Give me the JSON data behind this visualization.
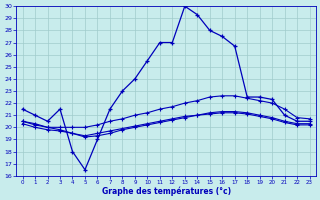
{
  "xlabel": "Graphe des températures (°c)",
  "xlim": [
    -0.5,
    23.5
  ],
  "ylim": [
    16,
    30
  ],
  "xticks": [
    0,
    1,
    2,
    3,
    4,
    5,
    6,
    7,
    8,
    9,
    10,
    11,
    12,
    13,
    14,
    15,
    16,
    17,
    18,
    19,
    20,
    21,
    22,
    23
  ],
  "yticks": [
    16,
    17,
    18,
    19,
    20,
    21,
    22,
    23,
    24,
    25,
    26,
    27,
    28,
    29,
    30
  ],
  "background_color": "#c8ecec",
  "grid_color": "#a0cccc",
  "line_color": "#0000bb",
  "series": {
    "max_temp": {
      "x": [
        0,
        1,
        2,
        3,
        4,
        5,
        6,
        7,
        8,
        9,
        10,
        11,
        12,
        13,
        14,
        15,
        16,
        17,
        18,
        19,
        20,
        21,
        22,
        23
      ],
      "y": [
        21.5,
        21.0,
        20.5,
        21.5,
        18.0,
        16.5,
        19.0,
        21.5,
        23.0,
        24.0,
        25.5,
        27.0,
        27.0,
        30.0,
        29.3,
        28.0,
        27.5,
        26.7,
        22.5,
        22.5,
        22.3,
        21.0,
        20.5,
        20.5
      ]
    },
    "line2": {
      "x": [
        0,
        1,
        2,
        3,
        4,
        5,
        6,
        7,
        8,
        9,
        10,
        11,
        12,
        13,
        14,
        15,
        16,
        17,
        18,
        19,
        20,
        21,
        22,
        23
      ],
      "y": [
        20.5,
        20.2,
        20.0,
        20.0,
        20.0,
        20.0,
        20.2,
        20.5,
        20.7,
        21.0,
        21.2,
        21.5,
        21.7,
        22.0,
        22.2,
        22.5,
        22.6,
        22.6,
        22.4,
        22.2,
        22.0,
        21.5,
        20.8,
        20.7
      ]
    },
    "line3": {
      "x": [
        0,
        1,
        2,
        3,
        4,
        5,
        6,
        7,
        8,
        9,
        10,
        11,
        12,
        13,
        14,
        15,
        16,
        17,
        18,
        19,
        20,
        21,
        22,
        23
      ],
      "y": [
        20.3,
        20.0,
        19.8,
        19.7,
        19.5,
        19.3,
        19.5,
        19.7,
        19.9,
        20.1,
        20.3,
        20.5,
        20.7,
        20.9,
        21.0,
        21.2,
        21.3,
        21.3,
        21.2,
        21.0,
        20.8,
        20.5,
        20.3,
        20.3
      ]
    },
    "line4": {
      "x": [
        0,
        1,
        2,
        3,
        4,
        5,
        6,
        7,
        8,
        9,
        10,
        11,
        12,
        13,
        14,
        15,
        16,
        17,
        18,
        19,
        20,
        21,
        22,
        23
      ],
      "y": [
        20.5,
        20.3,
        20.0,
        19.8,
        19.5,
        19.2,
        19.3,
        19.5,
        19.8,
        20.0,
        20.2,
        20.4,
        20.6,
        20.8,
        21.0,
        21.1,
        21.2,
        21.2,
        21.1,
        20.9,
        20.7,
        20.4,
        20.2,
        20.2
      ]
    }
  }
}
